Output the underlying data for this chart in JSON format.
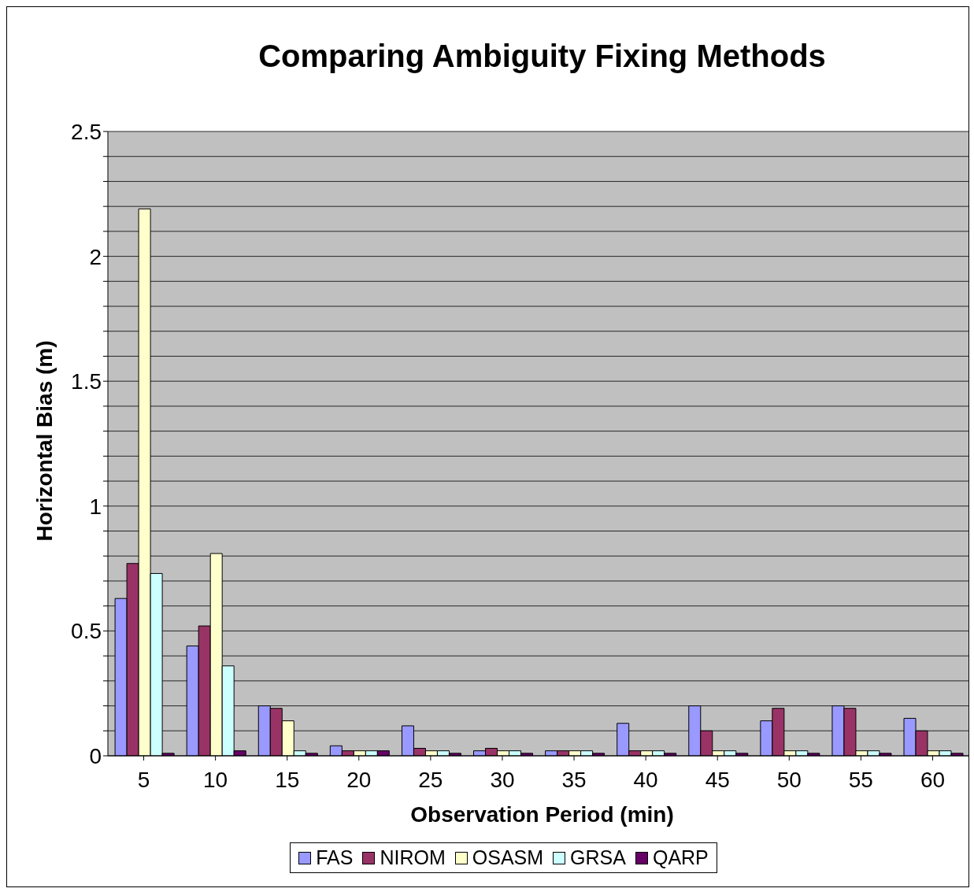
{
  "chart_data": {
    "type": "bar",
    "title": "Comparing Ambiguity Fixing Methods",
    "xlabel": "Observation Period (min)",
    "ylabel": "Horizontal Bias (m)",
    "categories": [
      "5",
      "10",
      "15",
      "20",
      "25",
      "30",
      "35",
      "40",
      "45",
      "50",
      "55",
      "60"
    ],
    "series": [
      {
        "name": "FAS",
        "color": "#9999ff",
        "values": [
          0.63,
          0.44,
          0.2,
          0.04,
          0.12,
          0.02,
          0.02,
          0.13,
          0.2,
          0.14,
          0.2,
          0.15
        ]
      },
      {
        "name": "NIROM",
        "color": "#993366",
        "values": [
          0.77,
          0.52,
          0.19,
          0.02,
          0.03,
          0.03,
          0.02,
          0.02,
          0.1,
          0.19,
          0.19,
          0.1
        ]
      },
      {
        "name": "OSASM",
        "color": "#ffffcc",
        "values": [
          2.19,
          0.81,
          0.14,
          0.02,
          0.02,
          0.02,
          0.02,
          0.02,
          0.02,
          0.02,
          0.02,
          0.02
        ]
      },
      {
        "name": "GRSA",
        "color": "#ccffff",
        "values": [
          0.73,
          0.36,
          0.02,
          0.02,
          0.02,
          0.02,
          0.02,
          0.02,
          0.02,
          0.02,
          0.02,
          0.02
        ]
      },
      {
        "name": "QARP",
        "color": "#660066",
        "values": [
          0.01,
          0.02,
          0.01,
          0.02,
          0.01,
          0.01,
          0.01,
          0.01,
          0.01,
          0.01,
          0.01,
          0.01
        ]
      }
    ],
    "ylim": [
      0,
      2.5
    ],
    "yticks": [
      0,
      {
        "value": 0.1,
        "label": null
      },
      {
        "value": 0.2,
        "label": null
      },
      {
        "value": 0.3,
        "label": null
      },
      {
        "value": 0.4,
        "label": null
      },
      0.5,
      {
        "value": 0.6,
        "label": null
      },
      {
        "value": 0.7,
        "label": null
      },
      {
        "value": 0.8,
        "label": null
      },
      {
        "value": 0.9,
        "label": null
      },
      1,
      {
        "value": 1.1,
        "label": null
      },
      {
        "value": 1.2,
        "label": null
      },
      {
        "value": 1.3,
        "label": null
      },
      {
        "value": 1.4,
        "label": null
      },
      1.5,
      {
        "value": 1.6,
        "label": null
      },
      {
        "value": 1.7,
        "label": null
      },
      {
        "value": 1.8,
        "label": null
      },
      {
        "value": 1.9,
        "label": null
      },
      2,
      {
        "value": 2.1,
        "label": null
      },
      {
        "value": 2.2,
        "label": null
      },
      {
        "value": 2.3,
        "label": null
      },
      {
        "value": 2.4,
        "label": null
      },
      2.5
    ],
    "grid": "y",
    "legend": "bottom"
  }
}
